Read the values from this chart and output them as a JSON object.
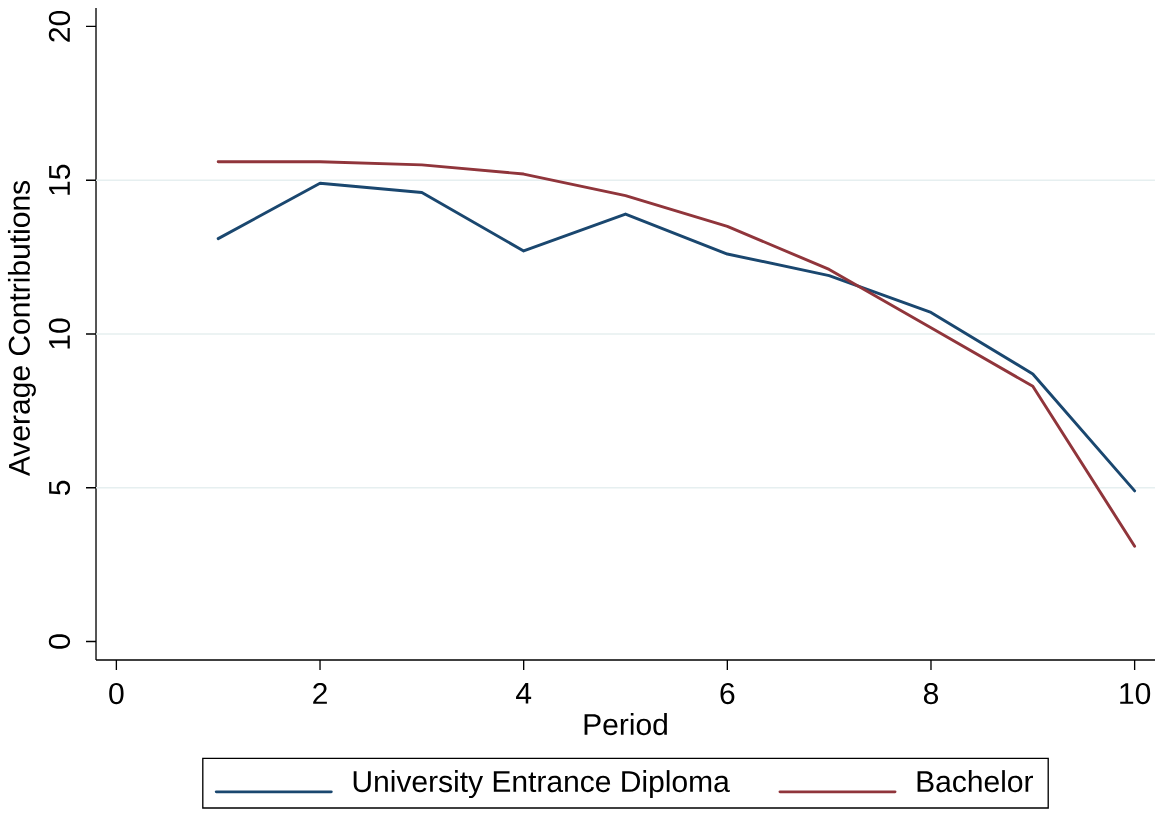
{
  "chart_data": {
    "type": "line",
    "xlabel": "Period",
    "ylabel": "Average Contributions",
    "x": [
      1,
      2,
      3,
      4,
      5,
      6,
      7,
      8,
      9,
      10
    ],
    "series": [
      {
        "name": "University Entrance Diploma",
        "color": "#1a476f",
        "values": [
          13.1,
          14.9,
          14.6,
          12.7,
          13.9,
          12.6,
          11.9,
          10.7,
          8.7,
          4.9
        ]
      },
      {
        "name": "Bachelor",
        "color": "#90353b",
        "values": [
          15.6,
          15.6,
          15.5,
          15.2,
          14.5,
          13.5,
          12.1,
          10.2,
          8.3,
          3.1
        ]
      }
    ],
    "xlim": [
      -0.2,
      10.2
    ],
    "ylim": [
      -0.6,
      20.6
    ],
    "xticks": [
      0,
      2,
      4,
      6,
      8,
      10
    ],
    "yticks": [
      0,
      5,
      10,
      15,
      20
    ],
    "grid": "y",
    "legend": "bottom",
    "marker": "none",
    "line_style": "solid"
  }
}
